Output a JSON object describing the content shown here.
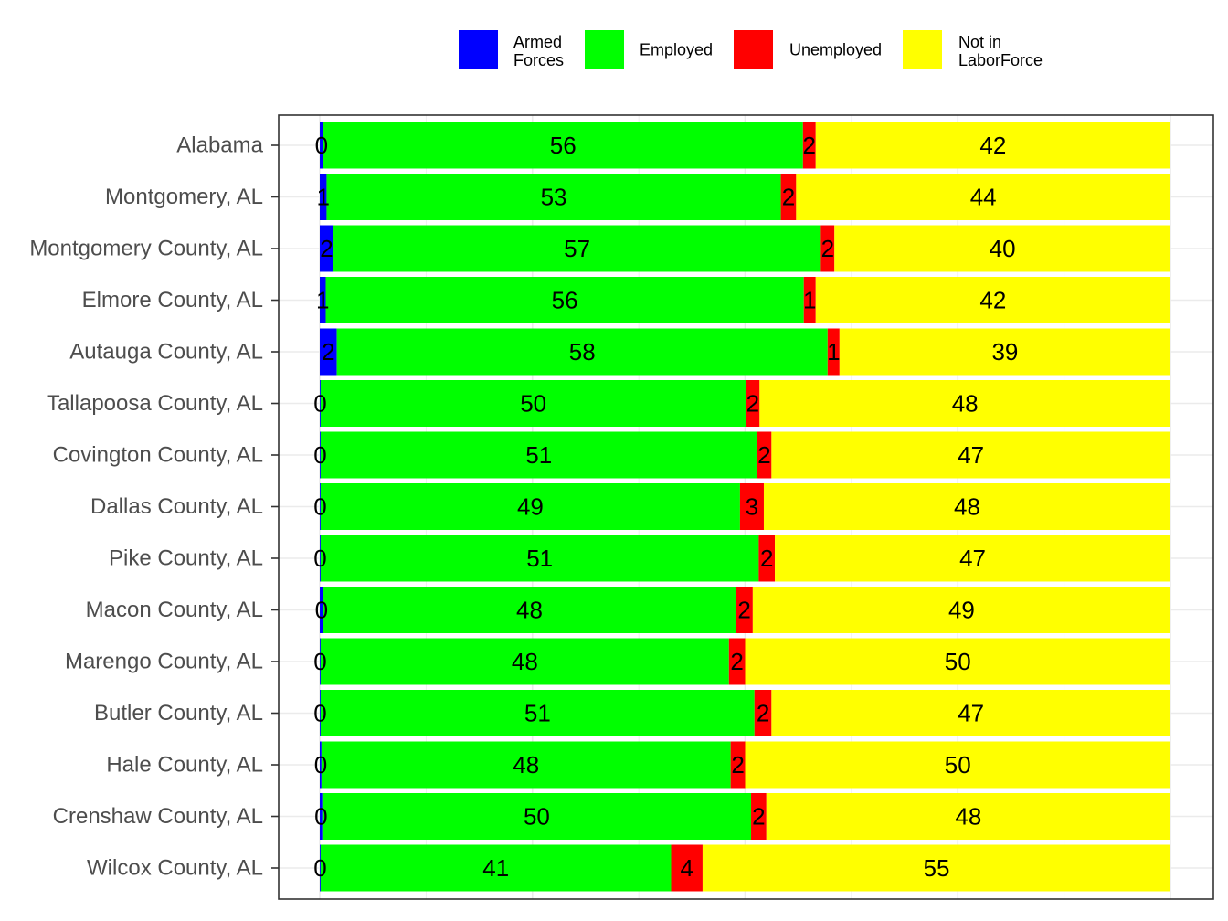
{
  "chart_data": {
    "type": "bar",
    "orientation": "horizontal",
    "stacked": "percent",
    "categories": [
      "Alabama",
      "Montgomery, AL",
      "Montgomery County, AL",
      "Elmore County, AL",
      "Autauga County, AL",
      "Tallapoosa County, AL",
      "Covington County, AL",
      "Dallas County, AL",
      "Pike County, AL",
      "Macon County, AL",
      "Marengo County, AL",
      "Butler County, AL",
      "Hale County, AL",
      "Crenshaw County, AL",
      "Wilcox County, AL"
    ],
    "series": [
      {
        "name": "Armed Forces",
        "legend_lines": [
          "Armed",
          "Forces"
        ],
        "color": "#0000ff",
        "values": [
          0.4,
          0.8,
          1.6,
          0.7,
          2.0,
          0.1,
          0.1,
          0.1,
          0.1,
          0.4,
          0.1,
          0.1,
          0.2,
          0.3,
          0.1
        ],
        "labels": [
          "0",
          "1",
          "2",
          "1",
          "2",
          "0",
          "0",
          "0",
          "0",
          "0",
          "0",
          "0",
          "0",
          "0",
          "0"
        ]
      },
      {
        "name": "Employed",
        "legend_lines": [
          "Employed"
        ],
        "color": "#00ff00",
        "values": [
          56.4,
          53.4,
          57.3,
          56.2,
          57.7,
          50.0,
          51.3,
          49.3,
          51.5,
          48.5,
          48.0,
          51.0,
          48.1,
          50.4,
          41.2
        ],
        "labels": [
          "56",
          "53",
          "57",
          "56",
          "58",
          "50",
          "51",
          "49",
          "51",
          "48",
          "48",
          "51",
          "48",
          "50",
          "41"
        ]
      },
      {
        "name": "Unemployed",
        "legend_lines": [
          "Unemployed"
        ],
        "color": "#ff0000",
        "values": [
          1.5,
          1.8,
          1.6,
          1.4,
          1.4,
          1.6,
          1.7,
          2.8,
          1.9,
          2.0,
          1.9,
          2.0,
          1.7,
          1.8,
          3.7
        ],
        "labels": [
          "2",
          "2",
          "2",
          "1",
          "1",
          "2",
          "2",
          "3",
          "2",
          "2",
          "2",
          "2",
          "2",
          "2",
          "4"
        ]
      },
      {
        "name": "Not in LaborForce",
        "legend_lines": [
          "Not in",
          "LaborForce"
        ],
        "color": "#ffff00",
        "values": [
          41.7,
          44.0,
          39.5,
          41.7,
          38.9,
          48.3,
          46.9,
          47.8,
          46.5,
          49.1,
          50.0,
          46.9,
          50.0,
          47.5,
          55.0
        ],
        "labels": [
          "42",
          "44",
          "40",
          "42",
          "39",
          "48",
          "47",
          "48",
          "47",
          "49",
          "50",
          "47",
          "50",
          "48",
          "55"
        ]
      }
    ],
    "xlim": [
      0,
      100
    ],
    "xlabel": "",
    "ylabel": "",
    "title": "",
    "grid": true,
    "legend_position": "top"
  }
}
